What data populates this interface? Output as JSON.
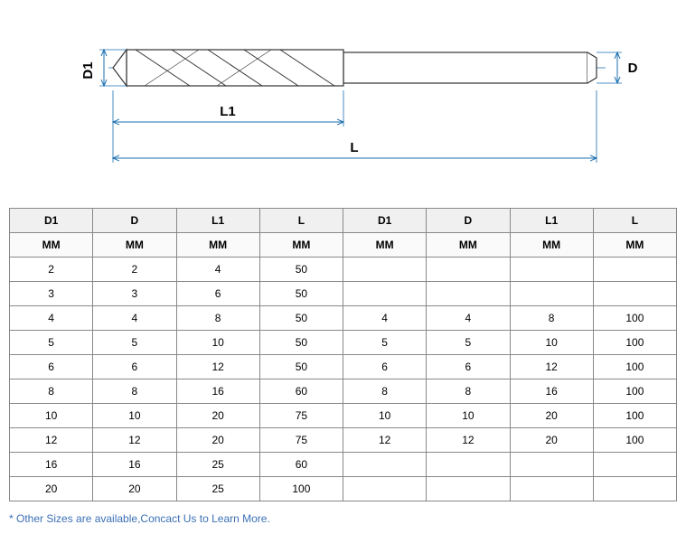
{
  "diagram": {
    "labels": {
      "D1": "D1",
      "D": "D",
      "L1": "L1",
      "L": "L"
    },
    "dim_color": "#1a6fb0",
    "dim_line_width": 1,
    "part_stroke": "#333333",
    "part_fill": "#ffffff"
  },
  "table": {
    "headers": [
      "D1",
      "D",
      "L1",
      "L",
      "D1",
      "D",
      "L1",
      "L"
    ],
    "units": [
      "MM",
      "MM",
      "MM",
      "MM",
      "MM",
      "MM",
      "MM",
      "MM"
    ],
    "rows": [
      [
        "2",
        "2",
        "4",
        "50",
        "",
        "",
        "",
        ""
      ],
      [
        "3",
        "3",
        "6",
        "50",
        "",
        "",
        "",
        ""
      ],
      [
        "4",
        "4",
        "8",
        "50",
        "4",
        "4",
        "8",
        "100"
      ],
      [
        "5",
        "5",
        "10",
        "50",
        "5",
        "5",
        "10",
        "100"
      ],
      [
        "6",
        "6",
        "12",
        "50",
        "6",
        "6",
        "12",
        "100"
      ],
      [
        "8",
        "8",
        "16",
        "60",
        "8",
        "8",
        "16",
        "100"
      ],
      [
        "10",
        "10",
        "20",
        "75",
        "10",
        "10",
        "20",
        "100"
      ],
      [
        "12",
        "12",
        "20",
        "75",
        "12",
        "12",
        "20",
        "100"
      ],
      [
        "16",
        "16",
        "25",
        "60",
        "",
        "",
        "",
        ""
      ],
      [
        "20",
        "20",
        "25",
        "100",
        "",
        "",
        "",
        ""
      ]
    ],
    "header_bg": "#f0f0f0",
    "border_color": "#888888",
    "font_size": 12
  },
  "footnote": "* Other Sizes are available,Concact Us to Learn More.",
  "footnote_color": "#3b6fb6"
}
